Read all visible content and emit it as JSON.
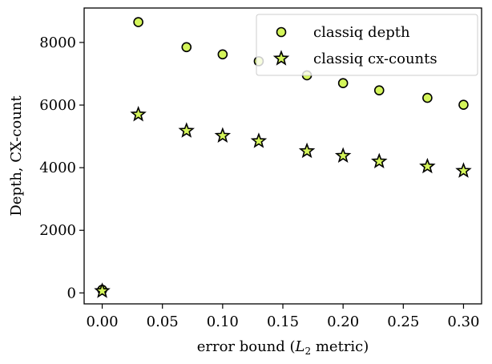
{
  "chart_data": {
    "type": "scatter",
    "xlabel_prefix": "error bound (",
    "xlabel_math": "L",
    "xlabel_sub": "2",
    "xlabel_suffix": " metric)",
    "ylabel": "Depth, CX-count",
    "xlim": [
      -0.015,
      0.315
    ],
    "ylim": [
      -350,
      9100
    ],
    "xticks": [
      0.0,
      0.05,
      0.1,
      0.15,
      0.2,
      0.25,
      0.3
    ],
    "xtick_labels": [
      "0.00",
      "0.05",
      "0.10",
      "0.15",
      "0.20",
      "0.25",
      "0.30"
    ],
    "yticks": [
      0,
      2000,
      4000,
      6000,
      8000
    ],
    "ytick_labels": [
      "0",
      "2000",
      "4000",
      "6000",
      "8000"
    ],
    "grid": false,
    "legend_position": "top-right",
    "marker_color": "#d4f55a",
    "edge_color": "#000000",
    "series": [
      {
        "name": "classiq depth",
        "marker": "circle",
        "x": [
          0.0,
          0.03,
          0.07,
          0.1,
          0.13,
          0.17,
          0.2,
          0.23,
          0.27,
          0.3
        ],
        "y": [
          100,
          8650,
          7850,
          7620,
          7400,
          6950,
          6700,
          6470,
          6230,
          6010
        ]
      },
      {
        "name": "classiq cx-counts",
        "marker": "star",
        "x": [
          0.0,
          0.03,
          0.07,
          0.1,
          0.13,
          0.17,
          0.2,
          0.23,
          0.27,
          0.3
        ],
        "y": [
          60,
          5700,
          5180,
          5020,
          4850,
          4530,
          4380,
          4200,
          4040,
          3900
        ]
      }
    ]
  }
}
